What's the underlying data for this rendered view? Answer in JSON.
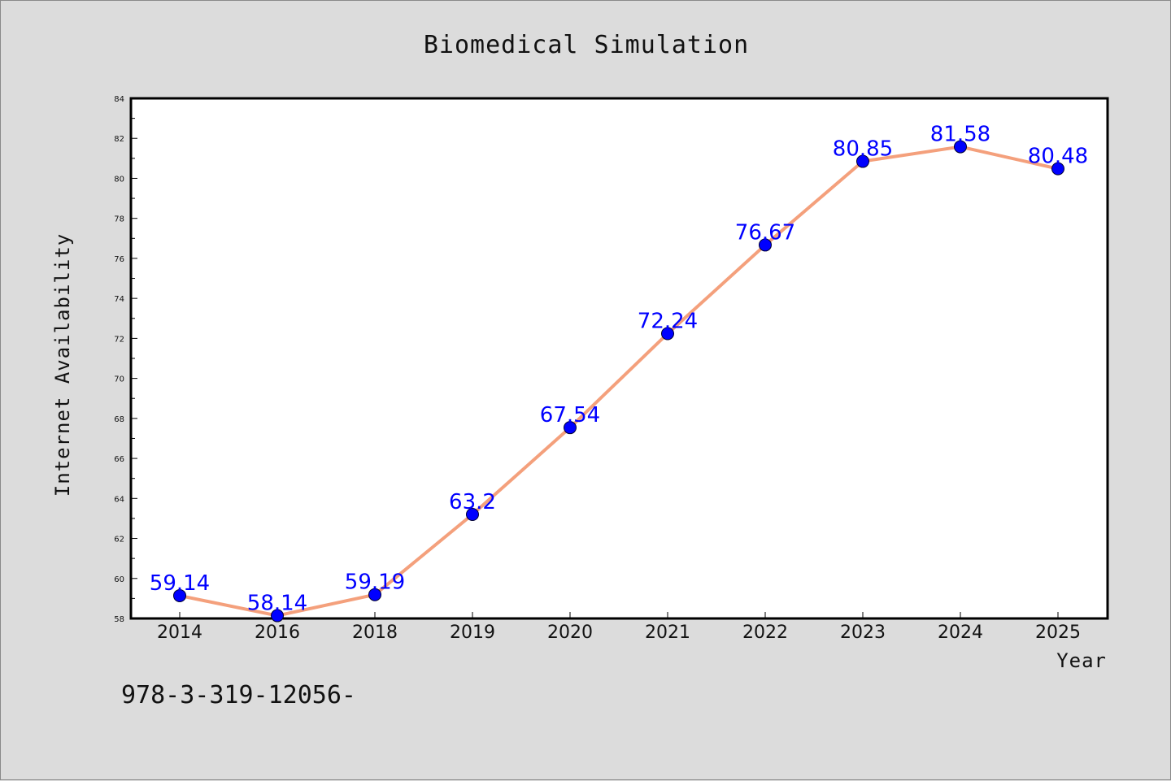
{
  "chart_data": {
    "type": "line",
    "title": "Biomedical Simulation",
    "xlabel": "Year",
    "ylabel": "Internet Availability",
    "categories": [
      "2014",
      "2016",
      "2018",
      "2019",
      "2020",
      "2021",
      "2022",
      "2023",
      "2024",
      "2025"
    ],
    "series": [
      {
        "values": [
          59.14,
          58.14,
          59.19,
          63.2,
          67.54,
          72.24,
          76.67,
          80.85,
          81.58,
          80.48
        ],
        "data_labels": [
          "59.14",
          "58.14",
          "59.19",
          "63.2",
          "67.54",
          "72.24",
          "76.67",
          "80.85",
          "81.58",
          "80.48"
        ],
        "line_color": "#f4a07c",
        "marker_color": "#0000ff"
      }
    ],
    "ylim": [
      58,
      84
    ],
    "y_ticks": [
      "58",
      "60",
      "62",
      "64",
      "66",
      "68",
      "70",
      "72",
      "74",
      "76",
      "78",
      "80",
      "82",
      "84"
    ],
    "grid": false,
    "legend": "none"
  },
  "footnote": "978-3-319-12056-",
  "colors": {
    "background": "#dcdcdc",
    "plot_background": "#ffffff",
    "line": "#f4a07c",
    "marker": "#0000ff",
    "label": "#0000ff"
  }
}
